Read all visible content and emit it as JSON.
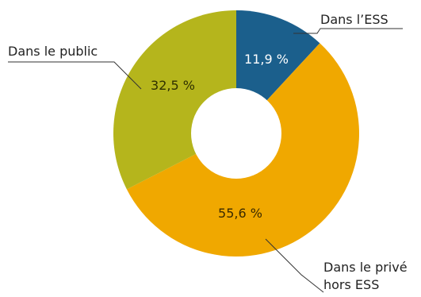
{
  "chart_data": {
    "type": "pie",
    "donut": true,
    "title": "",
    "slices": [
      {
        "name_lines": [
          "Dans l’ESS"
        ],
        "value": 11.9,
        "value_label": "11,9 %",
        "color": "#1b5f8c",
        "label_color": "#ffffff"
      },
      {
        "name_lines": [
          "Dans le privé",
          "hors ESS"
        ],
        "value": 55.6,
        "value_label": "55,6 %",
        "color": "#f0a800",
        "label_color": "#3a2a00"
      },
      {
        "name_lines": [
          "Dans le public"
        ],
        "value": 32.5,
        "value_label": "32,5 %",
        "color": "#b5b51c",
        "label_color": "#2f3000"
      }
    ],
    "start_angle": "12 o'clock",
    "direction": "clockwise",
    "legend": "none"
  }
}
